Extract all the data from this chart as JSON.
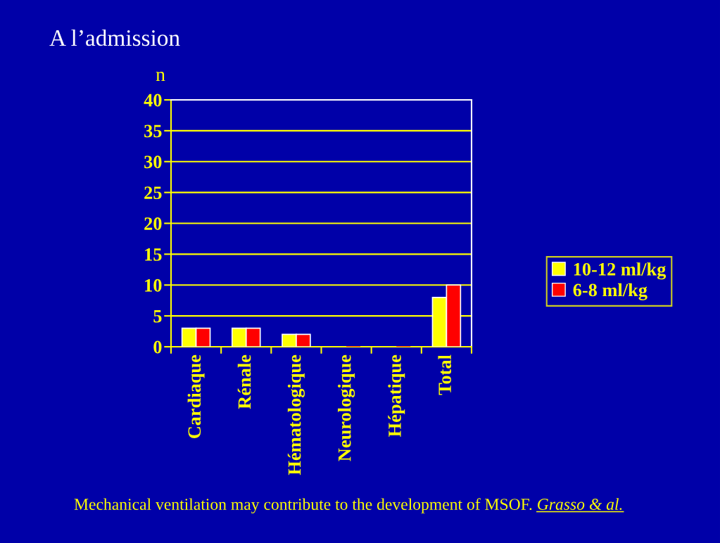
{
  "chart_data": {
    "type": "bar",
    "title": "A l’admission",
    "ylabel": "n",
    "categories": [
      "Cardiaque",
      "Rénale",
      "Hématologique",
      "Neurologique",
      "Hépatique",
      "Total"
    ],
    "series": [
      {
        "name": "10-12 ml/kg",
        "color": "#ffff00",
        "values": [
          3,
          3,
          2,
          0,
          0,
          8
        ]
      },
      {
        "name": "6-8 ml/kg",
        "color": "#ff0000",
        "values": [
          3,
          3,
          2,
          0,
          0,
          10
        ]
      }
    ],
    "ylim": [
      0,
      40
    ],
    "yticks": [
      0,
      5,
      10,
      15,
      20,
      25,
      30,
      35,
      40
    ],
    "grid": "y",
    "legend": "right",
    "annotations": [
      "Mechanical ventilation may contribute to the development of MSOF.",
      "Grasso & al."
    ]
  }
}
